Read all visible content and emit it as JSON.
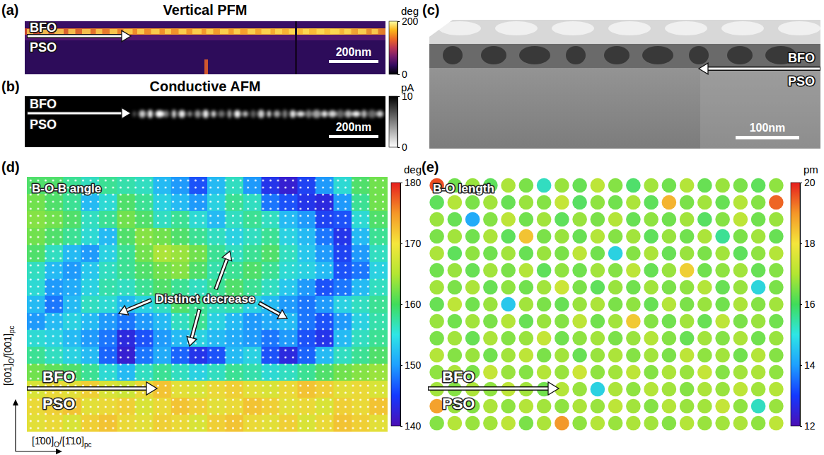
{
  "chart_data": [
    {
      "type": "image",
      "panel": "(a)",
      "title": "Vertical PFM",
      "labels": [
        "BFO",
        "PSO"
      ],
      "scale_bar": "200nm",
      "colorbar": {
        "unit": "deg",
        "lim": [
          0,
          200
        ],
        "ticks": [
          0,
          200
        ],
        "colors": [
          "#000004",
          "#320a5e",
          "#781c6d",
          "#bc3754",
          "#ed6925",
          "#fbb61a",
          "#fcffa4"
        ]
      }
    },
    {
      "type": "image",
      "panel": "(b)",
      "title": "Conductive AFM",
      "labels": [
        "BFO",
        "PSO"
      ],
      "scale_bar": "200nm",
      "colorbar": {
        "unit": "pA",
        "lim": [
          0,
          10
        ],
        "ticks": [
          0,
          10
        ],
        "colors": [
          "#ffffff",
          "#000000"
        ]
      }
    },
    {
      "type": "image",
      "panel": "(c)",
      "labels": [
        "BFO",
        "PSO"
      ],
      "scale_bar": "100nm"
    },
    {
      "type": "heatmap",
      "panel": "(d)",
      "title": "B-O-B angle",
      "annotation": "Distinct decrease",
      "labels": [
        "BFO",
        "PSO"
      ],
      "x_label": [
        "[1̄00]",
        "O",
        "/[1̄10]",
        "pc"
      ],
      "y_label": [
        "[001]",
        "O",
        "/[001]",
        "pc"
      ],
      "cells": [
        [
          160,
          160,
          158,
          156,
          158,
          157,
          156,
          152,
          150,
          146,
          152,
          156,
          150,
          144,
          142,
          145,
          150,
          155,
          160,
          162
        ],
        [
          162,
          160,
          158,
          152,
          155,
          160,
          158,
          154,
          152,
          150,
          154,
          158,
          156,
          148,
          146,
          144,
          143,
          150,
          158,
          162
        ],
        [
          163,
          162,
          160,
          156,
          158,
          162,
          160,
          156,
          158,
          155,
          152,
          156,
          158,
          156,
          152,
          150,
          145,
          146,
          155,
          160
        ],
        [
          162,
          160,
          158,
          155,
          152,
          160,
          163,
          162,
          160,
          158,
          156,
          154,
          156,
          158,
          154,
          152,
          148,
          144,
          152,
          158
        ],
        [
          160,
          156,
          152,
          150,
          154,
          158,
          162,
          165,
          164,
          162,
          158,
          156,
          158,
          160,
          156,
          153,
          150,
          145,
          150,
          156
        ],
        [
          156,
          152,
          150,
          153,
          156,
          158,
          160,
          162,
          163,
          160,
          157,
          158,
          160,
          158,
          155,
          154,
          152,
          146,
          148,
          154
        ],
        [
          155,
          150,
          151,
          154,
          157,
          156,
          158,
          160,
          158,
          156,
          158,
          160,
          158,
          156,
          153,
          150,
          146,
          148,
          152,
          156
        ],
        [
          152,
          148,
          152,
          156,
          155,
          152,
          154,
          156,
          160,
          158,
          156,
          157,
          154,
          152,
          150,
          148,
          150,
          154,
          156,
          158
        ],
        [
          150,
          152,
          154,
          152,
          150,
          148,
          150,
          152,
          156,
          158,
          154,
          152,
          150,
          151,
          152,
          148,
          146,
          150,
          154,
          157
        ],
        [
          155,
          154,
          152,
          150,
          148,
          143,
          146,
          150,
          152,
          154,
          152,
          151,
          150,
          148,
          150,
          146,
          144,
          152,
          156,
          158
        ],
        [
          158,
          156,
          154,
          152,
          147,
          142,
          148,
          151,
          147,
          144,
          146,
          152,
          154,
          146,
          143,
          147,
          152,
          156,
          158,
          160
        ],
        [
          162,
          161,
          160,
          158,
          155,
          152,
          156,
          158,
          156,
          154,
          156,
          158,
          157,
          155,
          156,
          158,
          160,
          162,
          163,
          164
        ],
        [
          168,
          170,
          169,
          171,
          168,
          167,
          170,
          172,
          169,
          168,
          170,
          171,
          169,
          168,
          170,
          172,
          171,
          169,
          170,
          168
        ],
        [
          170,
          171,
          172,
          169,
          170,
          171,
          168,
          170,
          172,
          171,
          169,
          170,
          172,
          171,
          169,
          170,
          168,
          171,
          170,
          172
        ],
        [
          169,
          170,
          168,
          171,
          172,
          170,
          169,
          171,
          170,
          168,
          171,
          172,
          170,
          169,
          171,
          168,
          170,
          172,
          171,
          169
        ]
      ],
      "colorbar": {
        "unit": "deg",
        "lim": [
          140,
          180
        ],
        "ticks": [
          140,
          150,
          160,
          170,
          180
        ],
        "colors": [
          "#4b0fb4",
          "#1438ff",
          "#1ea0ff",
          "#2ee6e6",
          "#40dc5a",
          "#b4e632",
          "#f5e63c",
          "#f59628",
          "#e61e1e"
        ]
      }
    },
    {
      "type": "heatmap",
      "panel": "(e)",
      "title": "B-O length",
      "labels": [
        "BFO",
        "PSO"
      ],
      "marker": "circle",
      "cells": [
        [
          19.6,
          16.4,
          16.8,
          16.2,
          17.0,
          16.5,
          15.2,
          16.8,
          16.3,
          17.2,
          16.6,
          16.0,
          16.9,
          16.4,
          17.1,
          16.3,
          16.8,
          16.5,
          16.2,
          16.7
        ],
        [
          16.2,
          17.1,
          16.5,
          16.9,
          16.3,
          16.8,
          16.6,
          17.3,
          16.1,
          16.7,
          16.4,
          17.0,
          16.2,
          18.6,
          16.5,
          16.9,
          16.3,
          17.1,
          16.6,
          19.4
        ],
        [
          16.8,
          16.3,
          14.2,
          16.6,
          17.2,
          16.4,
          16.9,
          16.2,
          16.8,
          16.5,
          17.1,
          16.3,
          16.7,
          16.4,
          16.9,
          16.1,
          16.6,
          17.2,
          16.4,
          16.8
        ],
        [
          16.5,
          16.9,
          16.4,
          17.0,
          16.2,
          18.4,
          16.5,
          16.8,
          16.3,
          17.1,
          16.6,
          16.9,
          16.2,
          16.8,
          16.4,
          17.0,
          15.6,
          16.5,
          16.9,
          16.3
        ],
        [
          17.0,
          16.2,
          16.7,
          16.4,
          16.9,
          16.3,
          16.8,
          16.5,
          17.2,
          16.4,
          14.8,
          16.6,
          17.0,
          16.3,
          16.8,
          16.5,
          16.9,
          16.2,
          16.7,
          17.1
        ],
        [
          16.4,
          16.8,
          16.3,
          16.9,
          16.5,
          17.1,
          16.2,
          16.7,
          16.4,
          16.9,
          16.6,
          17.2,
          16.3,
          16.8,
          18.2,
          16.4,
          16.7,
          16.9,
          16.3,
          16.6
        ],
        [
          16.9,
          16.5,
          17.0,
          16.3,
          16.7,
          16.4,
          16.9,
          17.4,
          16.5,
          16.2,
          16.8,
          16.4,
          16.9,
          16.5,
          16.7,
          17.1,
          16.3,
          16.8,
          14.9,
          16.5
        ],
        [
          16.3,
          17.2,
          16.4,
          16.8,
          14.6,
          16.9,
          16.5,
          16.3,
          16.8,
          17.0,
          16.5,
          16.7,
          16.3,
          17.1,
          16.5,
          16.8,
          16.4,
          17.0,
          16.6,
          16.9
        ],
        [
          16.8,
          16.4,
          16.9,
          16.5,
          17.1,
          16.3,
          16.8,
          16.6,
          17.2,
          16.4,
          16.9,
          18.3,
          16.6,
          16.4,
          16.9,
          16.3,
          17.2,
          16.5,
          16.8,
          16.4
        ],
        [
          16.5,
          16.9,
          16.3,
          17.0,
          16.6,
          16.8,
          17.3,
          16.4,
          16.7,
          16.9,
          16.5,
          16.8,
          17.1,
          16.6,
          16.3,
          16.9,
          16.6,
          17.0,
          16.4,
          16.8
        ],
        [
          17.1,
          16.6,
          16.8,
          16.4,
          16.9,
          17.2,
          16.5,
          16.9,
          16.3,
          16.8,
          17.0,
          16.6,
          16.9,
          16.5,
          17.2,
          16.7,
          16.9,
          16.4,
          17.1,
          16.6
        ],
        [
          16.7,
          17.0,
          16.5,
          17.3,
          16.8,
          16.6,
          17.1,
          16.8,
          17.4,
          16.7,
          16.9,
          17.2,
          16.6,
          17.0,
          16.8,
          17.3,
          16.6,
          16.9,
          17.0,
          16.7
        ],
        [
          16.9,
          16.6,
          17.0,
          16.7,
          17.2,
          16.9,
          16.4,
          17.1,
          16.8,
          14.8,
          17.0,
          16.7,
          17.1,
          16.9,
          16.6,
          17.0,
          16.8,
          17.2,
          16.9,
          17.1
        ],
        [
          18.8,
          16.8,
          16.6,
          17.0,
          16.7,
          17.1,
          16.9,
          16.7,
          17.0,
          16.8,
          17.2,
          16.9,
          16.6,
          17.1,
          16.8,
          16.9,
          17.3,
          16.7,
          15.2,
          16.8
        ],
        [
          16.6,
          17.1,
          16.8,
          16.9,
          17.2,
          16.5,
          17.0,
          18.9,
          16.7,
          17.1,
          16.8,
          17.0,
          16.9,
          16.6,
          17.1,
          16.8,
          16.9,
          17.0,
          16.7,
          17.2
        ]
      ],
      "colorbar": {
        "unit": "pm",
        "lim": [
          12,
          20
        ],
        "ticks": [
          12,
          14,
          16,
          18,
          20
        ],
        "colors": [
          "#4b0fb4",
          "#1438ff",
          "#1ea0ff",
          "#2ee6e6",
          "#40dc5a",
          "#b4e632",
          "#f5e63c",
          "#f59628",
          "#e61e1e"
        ]
      }
    }
  ]
}
